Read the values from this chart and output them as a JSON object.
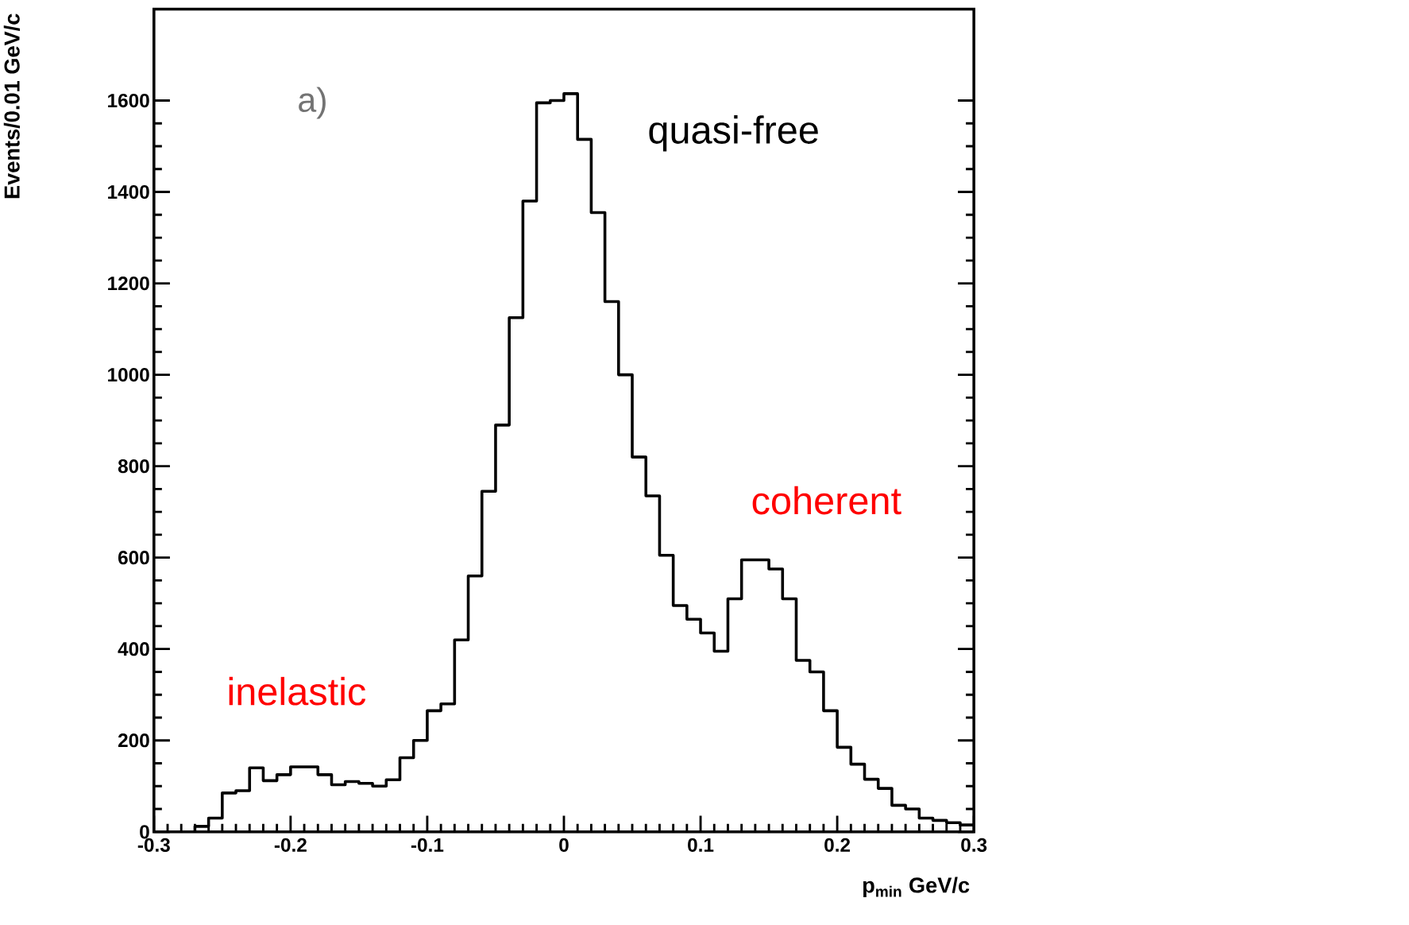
{
  "chart_data": {
    "type": "histogram",
    "xlabel": "p$_{min}$ GeV/c",
    "ylabel": "Events/0.01 GeV/c",
    "bins": [
      -0.3,
      -0.29,
      -0.28,
      -0.27,
      -0.26,
      -0.25,
      -0.24,
      -0.23,
      -0.22,
      -0.21,
      -0.2,
      -0.19,
      -0.18,
      -0.17,
      -0.16,
      -0.15,
      -0.14,
      -0.13,
      -0.12,
      -0.11,
      -0.1,
      -0.09,
      -0.08,
      -0.07,
      -0.06,
      -0.05,
      -0.04,
      -0.03,
      -0.02,
      -0.01,
      0,
      0.01,
      0.02,
      0.03,
      0.04,
      0.05,
      0.06,
      0.07,
      0.08,
      0.09,
      0.1,
      0.11,
      0.12,
      0.13,
      0.14,
      0.15,
      0.16,
      0.17,
      0.18,
      0.19,
      0.2,
      0.21,
      0.22,
      0.23,
      0.24,
      0.25,
      0.26,
      0.27,
      0.28,
      0.29,
      0.3
    ],
    "values": [
      0,
      0,
      0,
      12,
      30,
      85,
      90,
      140,
      112,
      125,
      142,
      142,
      125,
      103,
      110,
      106,
      100,
      114,
      162,
      200,
      265,
      280,
      420,
      560,
      745,
      890,
      1125,
      1380,
      1595,
      1600,
      1615,
      1515,
      1355,
      1160,
      1000,
      820,
      735,
      605,
      495,
      465,
      435,
      395,
      510,
      595,
      595,
      575,
      510,
      375,
      350,
      265,
      185,
      148,
      115,
      95,
      58,
      50,
      30,
      25,
      20,
      15
    ],
    "color": "#000000",
    "xlim": [
      -0.3,
      0.3
    ],
    "xticks": [
      -0.3,
      -0.2,
      -0.1,
      0,
      0.1,
      0.2,
      0.3
    ],
    "ylim": [
      0,
      1800
    ],
    "yticks": [
      0,
      200,
      400,
      600,
      800,
      1000,
      1200,
      1400,
      1600
    ],
    "annotations": [
      "a)",
      "quasi-free",
      "coherent",
      "inelastic"
    ]
  }
}
